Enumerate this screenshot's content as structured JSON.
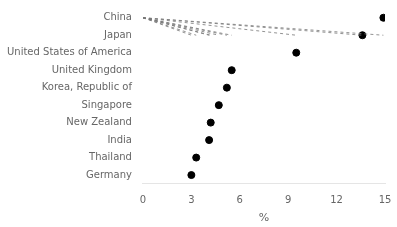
{
  "chart_data": {
    "type": "lollipop",
    "orientation": "horizontal",
    "categories": [
      "China",
      "Japan",
      "United States of America",
      "United Kingdom",
      "Korea, Republic of",
      "Singapore",
      "New Zealand",
      "India",
      "Thailand",
      "Germany"
    ],
    "values": [
      14.9,
      13.6,
      9.5,
      5.5,
      5.2,
      4.7,
      4.2,
      4.1,
      3.3,
      3.0
    ],
    "color": "#000000",
    "marker": "circle",
    "line_style": "dashed",
    "xlabel": "%",
    "xlim": [
      0,
      15
    ],
    "xticks": [
      0,
      3,
      6,
      9,
      12,
      15
    ],
    "grid": false
  }
}
